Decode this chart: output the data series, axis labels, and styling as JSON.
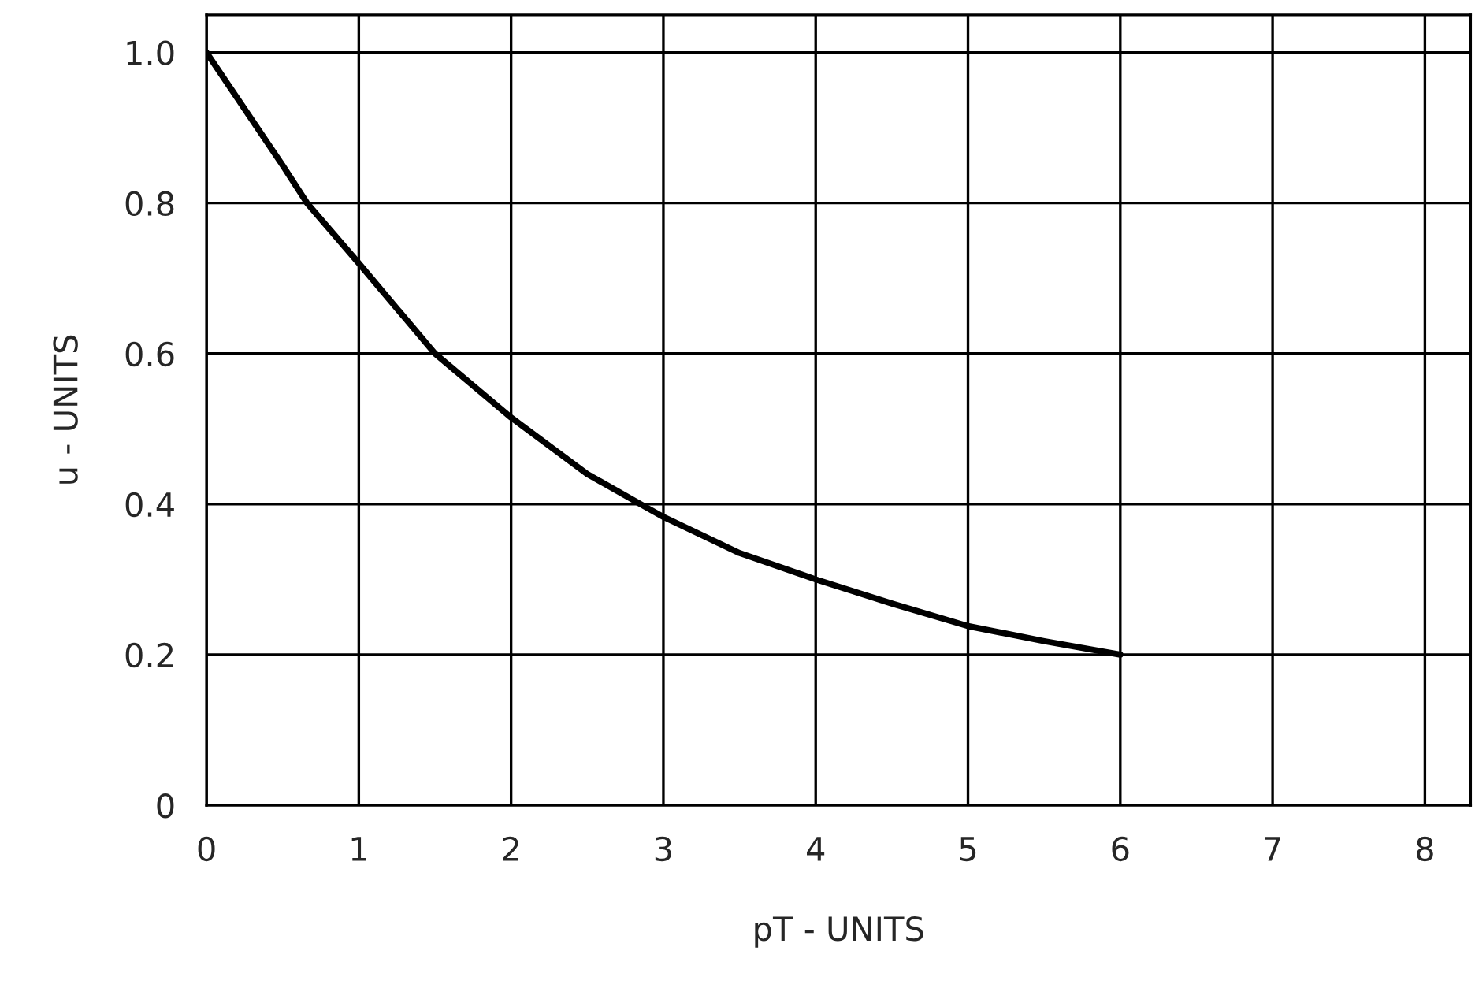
{
  "chart_data": {
    "type": "line",
    "xlabel": "pT - UNITS",
    "ylabel": "u - UNITS",
    "x": [
      0,
      0.5,
      0.66,
      1,
      1.5,
      2,
      2.5,
      2.85,
      3,
      3.5,
      4,
      4.5,
      5,
      5.5,
      6
    ],
    "series": [
      {
        "color": "#000000",
        "values": [
          1.0,
          0.85,
          0.8,
          0.72,
          0.6,
          0.515,
          0.44,
          0.4,
          0.383,
          0.335,
          0.3,
          0.268,
          0.238,
          0.218,
          0.2
        ]
      }
    ],
    "xlim": [
      0,
      8.3
    ],
    "ylim": [
      0,
      1.05
    ],
    "xticks": [
      0,
      1,
      2,
      3,
      4,
      5,
      6,
      7,
      8
    ],
    "yticks": [
      0,
      0.2,
      0.4,
      0.6,
      0.8,
      {
        "value": 1.0,
        "label": "1.0"
      }
    ],
    "grid": true,
    "legend": false,
    "marker": "none",
    "line_style": "solid"
  }
}
